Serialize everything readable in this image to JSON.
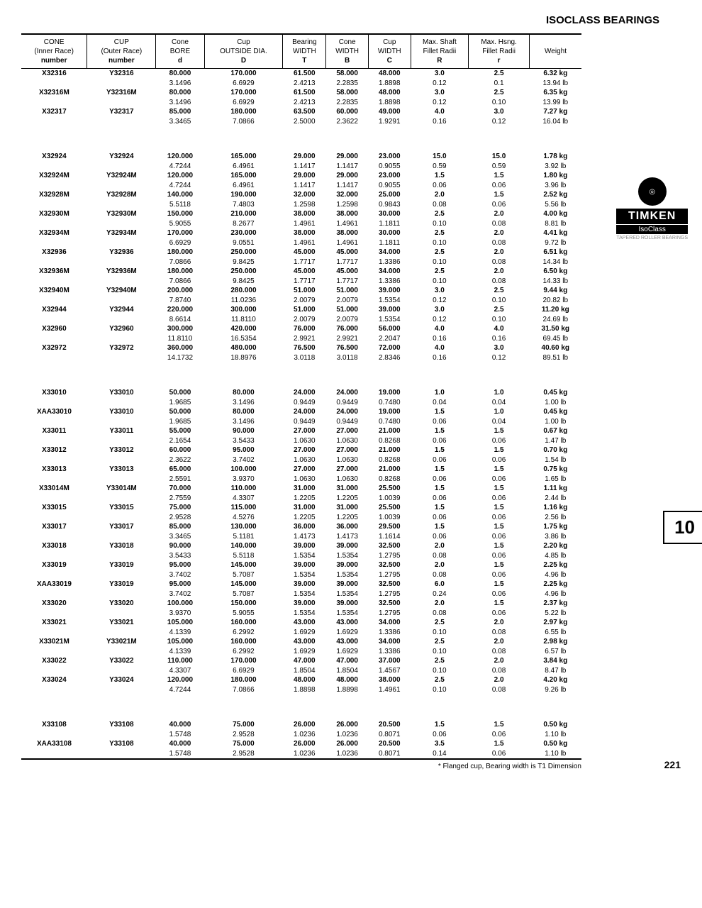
{
  "title": "ISOCLASS BEARINGS",
  "footnote": "* Flanged cup, Bearing width is T1 Dimension",
  "page_number": "221",
  "side_tab": "10",
  "logo": {
    "brand": "TIMKEN",
    "sub": "IsoClass",
    "tag": "TAPERED ROLLER BEARINGS"
  },
  "columns": [
    {
      "l1": "CONE",
      "l2": "(Inner Race)",
      "l3": "number"
    },
    {
      "l1": "CUP",
      "l2": "(Outer Race)",
      "l3": "number"
    },
    {
      "l1": "Cone",
      "l2": "BORE",
      "l3": "d"
    },
    {
      "l1": "Cup",
      "l2": "OUTSIDE DIA.",
      "l3": "D"
    },
    {
      "l1": "Bearing",
      "l2": "WIDTH",
      "l3": "T"
    },
    {
      "l1": "Cone",
      "l2": "WIDTH",
      "l3": "B"
    },
    {
      "l1": "Cup",
      "l2": "WIDTH",
      "l3": "C"
    },
    {
      "l1": "Max. Shaft",
      "l2": "Fillet Radii",
      "l3": "R"
    },
    {
      "l1": "Max. Hsng.",
      "l2": "Fillet Radii",
      "l3": "r"
    },
    {
      "l1": "Weight",
      "l2": "",
      "l3": ""
    }
  ],
  "groups": [
    [
      {
        "cone": "X32316",
        "cup": "Y32316",
        "d": [
          "80.000",
          "3.1496"
        ],
        "D": [
          "170.000",
          "6.6929"
        ],
        "T": [
          "61.500",
          "2.4213"
        ],
        "B": [
          "58.000",
          "2.2835"
        ],
        "C": [
          "48.000",
          "1.8898"
        ],
        "R": [
          "3.0",
          "0.12"
        ],
        "r": [
          "2.5",
          "0.1"
        ],
        "w": [
          "6.32 kg",
          "13.94 lb"
        ]
      },
      {
        "cone": "X32316M",
        "cup": "Y32316M",
        "d": [
          "80.000",
          "3.1496"
        ],
        "D": [
          "170.000",
          "6.6929"
        ],
        "T": [
          "61.500",
          "2.4213"
        ],
        "B": [
          "58.000",
          "2.2835"
        ],
        "C": [
          "48.000",
          "1.8898"
        ],
        "R": [
          "3.0",
          "0.12"
        ],
        "r": [
          "2.5",
          "0.10"
        ],
        "w": [
          "6.35 kg",
          "13.99 lb"
        ]
      },
      {
        "cone": "X32317",
        "cup": "Y32317",
        "d": [
          "85.000",
          "3.3465"
        ],
        "D": [
          "180.000",
          "7.0866"
        ],
        "T": [
          "63.500",
          "2.5000"
        ],
        "B": [
          "60.000",
          "2.3622"
        ],
        "C": [
          "49.000",
          "1.9291"
        ],
        "R": [
          "4.0",
          "0.16"
        ],
        "r": [
          "3.0",
          "0.12"
        ],
        "w": [
          "7.27 kg",
          "16.04 lb"
        ]
      }
    ],
    [
      {
        "cone": "X32924",
        "cup": "Y32924",
        "d": [
          "120.000",
          "4.7244"
        ],
        "D": [
          "165.000",
          "6.4961"
        ],
        "T": [
          "29.000",
          "1.1417"
        ],
        "B": [
          "29.000",
          "1.1417"
        ],
        "C": [
          "23.000",
          "0.9055"
        ],
        "R": [
          "15.0",
          "0.59"
        ],
        "r": [
          "15.0",
          "0.59"
        ],
        "w": [
          "1.78 kg",
          "3.92 lb"
        ]
      },
      {
        "cone": "X32924M",
        "cup": "Y32924M",
        "d": [
          "120.000",
          "4.7244"
        ],
        "D": [
          "165.000",
          "6.4961"
        ],
        "T": [
          "29.000",
          "1.1417"
        ],
        "B": [
          "29.000",
          "1.1417"
        ],
        "C": [
          "23.000",
          "0.9055"
        ],
        "R": [
          "1.5",
          "0.06"
        ],
        "r": [
          "1.5",
          "0.06"
        ],
        "w": [
          "1.80 kg",
          "3.96 lb"
        ]
      },
      {
        "cone": "X32928M",
        "cup": "Y32928M",
        "d": [
          "140.000",
          "5.5118"
        ],
        "D": [
          "190.000",
          "7.4803"
        ],
        "T": [
          "32.000",
          "1.2598"
        ],
        "B": [
          "32.000",
          "1.2598"
        ],
        "C": [
          "25.000",
          "0.9843"
        ],
        "R": [
          "2.0",
          "0.08"
        ],
        "r": [
          "1.5",
          "0.06"
        ],
        "w": [
          "2.52 kg",
          "5.56 lb"
        ]
      },
      {
        "cone": "X32930M",
        "cup": "Y32930M",
        "d": [
          "150.000",
          "5.9055"
        ],
        "D": [
          "210.000",
          "8.2677"
        ],
        "T": [
          "38.000",
          "1.4961"
        ],
        "B": [
          "38.000",
          "1.4961"
        ],
        "C": [
          "30.000",
          "1.1811"
        ],
        "R": [
          "2.5",
          "0.10"
        ],
        "r": [
          "2.0",
          "0.08"
        ],
        "w": [
          "4.00 kg",
          "8.81 lb"
        ]
      },
      {
        "cone": "X32934M",
        "cup": "Y32934M",
        "d": [
          "170.000",
          "6.6929"
        ],
        "D": [
          "230.000",
          "9.0551"
        ],
        "T": [
          "38.000",
          "1.4961"
        ],
        "B": [
          "38.000",
          "1.4961"
        ],
        "C": [
          "30.000",
          "1.1811"
        ],
        "R": [
          "2.5",
          "0.10"
        ],
        "r": [
          "2.0",
          "0.08"
        ],
        "w": [
          "4.41 kg",
          "9.72 lb"
        ]
      },
      {
        "cone": "X32936",
        "cup": "Y32936",
        "d": [
          "180.000",
          "7.0866"
        ],
        "D": [
          "250.000",
          "9.8425"
        ],
        "T": [
          "45.000",
          "1.7717"
        ],
        "B": [
          "45.000",
          "1.7717"
        ],
        "C": [
          "34.000",
          "1.3386"
        ],
        "R": [
          "2.5",
          "0.10"
        ],
        "r": [
          "2.0",
          "0.08"
        ],
        "w": [
          "6.51 kg",
          "14.34 lb"
        ]
      },
      {
        "cone": "X32936M",
        "cup": "Y32936M",
        "d": [
          "180.000",
          "7.0866"
        ],
        "D": [
          "250.000",
          "9.8425"
        ],
        "T": [
          "45.000",
          "1.7717"
        ],
        "B": [
          "45.000",
          "1.7717"
        ],
        "C": [
          "34.000",
          "1.3386"
        ],
        "R": [
          "2.5",
          "0.10"
        ],
        "r": [
          "2.0",
          "0.08"
        ],
        "w": [
          "6.50 kg",
          "14.33 lb"
        ]
      },
      {
        "cone": "X32940M",
        "cup": "Y32940M",
        "d": [
          "200.000",
          "7.8740"
        ],
        "D": [
          "280.000",
          "11.0236"
        ],
        "T": [
          "51.000",
          "2.0079"
        ],
        "B": [
          "51.000",
          "2.0079"
        ],
        "C": [
          "39.000",
          "1.5354"
        ],
        "R": [
          "3.0",
          "0.12"
        ],
        "r": [
          "2.5",
          "0.10"
        ],
        "w": [
          "9.44 kg",
          "20.82 lb"
        ]
      },
      {
        "cone": "X32944",
        "cup": "Y32944",
        "d": [
          "220.000",
          "8.6614"
        ],
        "D": [
          "300.000",
          "11.8110"
        ],
        "T": [
          "51.000",
          "2.0079"
        ],
        "B": [
          "51.000",
          "2.0079"
        ],
        "C": [
          "39.000",
          "1.5354"
        ],
        "R": [
          "3.0",
          "0.12"
        ],
        "r": [
          "2.5",
          "0.10"
        ],
        "w": [
          "11.20 kg",
          "24.69 lb"
        ]
      },
      {
        "cone": "X32960",
        "cup": "Y32960",
        "d": [
          "300.000",
          "11.8110"
        ],
        "D": [
          "420.000",
          "16.5354"
        ],
        "T": [
          "76.000",
          "2.9921"
        ],
        "B": [
          "76.000",
          "2.9921"
        ],
        "C": [
          "56.000",
          "2.2047"
        ],
        "R": [
          "4.0",
          "0.16"
        ],
        "r": [
          "4.0",
          "0.16"
        ],
        "w": [
          "31.50 kg",
          "69.45 lb"
        ]
      },
      {
        "cone": "X32972",
        "cup": "Y32972",
        "d": [
          "360.000",
          "14.1732"
        ],
        "D": [
          "480.000",
          "18.8976"
        ],
        "T": [
          "76.500",
          "3.0118"
        ],
        "B": [
          "76.500",
          "3.0118"
        ],
        "C": [
          "72.000",
          "2.8346"
        ],
        "R": [
          "4.0",
          "0.16"
        ],
        "r": [
          "3.0",
          "0.12"
        ],
        "w": [
          "40.60 kg",
          "89.51 lb"
        ]
      }
    ],
    [
      {
        "cone": "X33010",
        "cup": "Y33010",
        "d": [
          "50.000",
          "1.9685"
        ],
        "D": [
          "80.000",
          "3.1496"
        ],
        "T": [
          "24.000",
          "0.9449"
        ],
        "B": [
          "24.000",
          "0.9449"
        ],
        "C": [
          "19.000",
          "0.7480"
        ],
        "R": [
          "1.0",
          "0.04"
        ],
        "r": [
          "1.0",
          "0.04"
        ],
        "w": [
          "0.45 kg",
          "1.00 lb"
        ]
      },
      {
        "cone": "XAA33010",
        "cup": "Y33010",
        "d": [
          "50.000",
          "1.9685"
        ],
        "D": [
          "80.000",
          "3.1496"
        ],
        "T": [
          "24.000",
          "0.9449"
        ],
        "B": [
          "24.000",
          "0.9449"
        ],
        "C": [
          "19.000",
          "0.7480"
        ],
        "R": [
          "1.5",
          "0.06"
        ],
        "r": [
          "1.0",
          "0.04"
        ],
        "w": [
          "0.45 kg",
          "1.00 lb"
        ]
      },
      {
        "cone": "X33011",
        "cup": "Y33011",
        "d": [
          "55.000",
          "2.1654"
        ],
        "D": [
          "90.000",
          "3.5433"
        ],
        "T": [
          "27.000",
          "1.0630"
        ],
        "B": [
          "27.000",
          "1.0630"
        ],
        "C": [
          "21.000",
          "0.8268"
        ],
        "R": [
          "1.5",
          "0.06"
        ],
        "r": [
          "1.5",
          "0.06"
        ],
        "w": [
          "0.67 kg",
          "1.47 lb"
        ]
      },
      {
        "cone": "X33012",
        "cup": "Y33012",
        "d": [
          "60.000",
          "2.3622"
        ],
        "D": [
          "95.000",
          "3.7402"
        ],
        "T": [
          "27.000",
          "1.0630"
        ],
        "B": [
          "27.000",
          "1.0630"
        ],
        "C": [
          "21.000",
          "0.8268"
        ],
        "R": [
          "1.5",
          "0.06"
        ],
        "r": [
          "1.5",
          "0.06"
        ],
        "w": [
          "0.70 kg",
          "1.54 lb"
        ]
      },
      {
        "cone": "X33013",
        "cup": "Y33013",
        "d": [
          "65.000",
          "2.5591"
        ],
        "D": [
          "100.000",
          "3.9370"
        ],
        "T": [
          "27.000",
          "1.0630"
        ],
        "B": [
          "27.000",
          "1.0630"
        ],
        "C": [
          "21.000",
          "0.8268"
        ],
        "R": [
          "1.5",
          "0.06"
        ],
        "r": [
          "1.5",
          "0.06"
        ],
        "w": [
          "0.75 kg",
          "1.65 lb"
        ]
      },
      {
        "cone": "X33014M",
        "cup": "Y33014M",
        "d": [
          "70.000",
          "2.7559"
        ],
        "D": [
          "110.000",
          "4.3307"
        ],
        "T": [
          "31.000",
          "1.2205"
        ],
        "B": [
          "31.000",
          "1.2205"
        ],
        "C": [
          "25.500",
          "1.0039"
        ],
        "R": [
          "1.5",
          "0.06"
        ],
        "r": [
          "1.5",
          "0.06"
        ],
        "w": [
          "1.11 kg",
          "2.44 lb"
        ]
      },
      {
        "cone": "X33015",
        "cup": "Y33015",
        "d": [
          "75.000",
          "2.9528"
        ],
        "D": [
          "115.000",
          "4.5276"
        ],
        "T": [
          "31.000",
          "1.2205"
        ],
        "B": [
          "31.000",
          "1.2205"
        ],
        "C": [
          "25.500",
          "1.0039"
        ],
        "R": [
          "1.5",
          "0.06"
        ],
        "r": [
          "1.5",
          "0.06"
        ],
        "w": [
          "1.16 kg",
          "2.56 lb"
        ]
      },
      {
        "cone": "X33017",
        "cup": "Y33017",
        "d": [
          "85.000",
          "3.3465"
        ],
        "D": [
          "130.000",
          "5.1181"
        ],
        "T": [
          "36.000",
          "1.4173"
        ],
        "B": [
          "36.000",
          "1.4173"
        ],
        "C": [
          "29.500",
          "1.1614"
        ],
        "R": [
          "1.5",
          "0.06"
        ],
        "r": [
          "1.5",
          "0.06"
        ],
        "w": [
          "1.75 kg",
          "3.86 lb"
        ]
      },
      {
        "cone": "X33018",
        "cup": "Y33018",
        "d": [
          "90.000",
          "3.5433"
        ],
        "D": [
          "140.000",
          "5.5118"
        ],
        "T": [
          "39.000",
          "1.5354"
        ],
        "B": [
          "39.000",
          "1.5354"
        ],
        "C": [
          "32.500",
          "1.2795"
        ],
        "R": [
          "2.0",
          "0.08"
        ],
        "r": [
          "1.5",
          "0.06"
        ],
        "w": [
          "2.20 kg",
          "4.85 lb"
        ]
      },
      {
        "cone": "X33019",
        "cup": "Y33019",
        "d": [
          "95.000",
          "3.7402"
        ],
        "D": [
          "145.000",
          "5.7087"
        ],
        "T": [
          "39.000",
          "1.5354"
        ],
        "B": [
          "39.000",
          "1.5354"
        ],
        "C": [
          "32.500",
          "1.2795"
        ],
        "R": [
          "2.0",
          "0.08"
        ],
        "r": [
          "1.5",
          "0.06"
        ],
        "w": [
          "2.25 kg",
          "4.96 lb"
        ]
      },
      {
        "cone": "XAA33019",
        "cup": "Y33019",
        "d": [
          "95.000",
          "3.7402"
        ],
        "D": [
          "145.000",
          "5.7087"
        ],
        "T": [
          "39.000",
          "1.5354"
        ],
        "B": [
          "39.000",
          "1.5354"
        ],
        "C": [
          "32.500",
          "1.2795"
        ],
        "R": [
          "6.0",
          "0.24"
        ],
        "r": [
          "1.5",
          "0.06"
        ],
        "w": [
          "2.25 kg",
          "4.96 lb"
        ]
      },
      {
        "cone": "X33020",
        "cup": "Y33020",
        "d": [
          "100.000",
          "3.9370"
        ],
        "D": [
          "150.000",
          "5.9055"
        ],
        "T": [
          "39.000",
          "1.5354"
        ],
        "B": [
          "39.000",
          "1.5354"
        ],
        "C": [
          "32.500",
          "1.2795"
        ],
        "R": [
          "2.0",
          "0.08"
        ],
        "r": [
          "1.5",
          "0.06"
        ],
        "w": [
          "2.37 kg",
          "5.22 lb"
        ]
      },
      {
        "cone": "X33021",
        "cup": "Y33021",
        "d": [
          "105.000",
          "4.1339"
        ],
        "D": [
          "160.000",
          "6.2992"
        ],
        "T": [
          "43.000",
          "1.6929"
        ],
        "B": [
          "43.000",
          "1.6929"
        ],
        "C": [
          "34.000",
          "1.3386"
        ],
        "R": [
          "2.5",
          "0.10"
        ],
        "r": [
          "2.0",
          "0.08"
        ],
        "w": [
          "2.97 kg",
          "6.55 lb"
        ]
      },
      {
        "cone": "X33021M",
        "cup": "Y33021M",
        "d": [
          "105.000",
          "4.1339"
        ],
        "D": [
          "160.000",
          "6.2992"
        ],
        "T": [
          "43.000",
          "1.6929"
        ],
        "B": [
          "43.000",
          "1.6929"
        ],
        "C": [
          "34.000",
          "1.3386"
        ],
        "R": [
          "2.5",
          "0.10"
        ],
        "r": [
          "2.0",
          "0.08"
        ],
        "w": [
          "2.98 kg",
          "6.57 lb"
        ]
      },
      {
        "cone": "X33022",
        "cup": "Y33022",
        "d": [
          "110.000",
          "4.3307"
        ],
        "D": [
          "170.000",
          "6.6929"
        ],
        "T": [
          "47.000",
          "1.8504"
        ],
        "B": [
          "47.000",
          "1.8504"
        ],
        "C": [
          "37.000",
          "1.4567"
        ],
        "R": [
          "2.5",
          "0.10"
        ],
        "r": [
          "2.0",
          "0.08"
        ],
        "w": [
          "3.84 kg",
          "8.47 lb"
        ]
      },
      {
        "cone": "X33024",
        "cup": "Y33024",
        "d": [
          "120.000",
          "4.7244"
        ],
        "D": [
          "180.000",
          "7.0866"
        ],
        "T": [
          "48.000",
          "1.8898"
        ],
        "B": [
          "48.000",
          "1.8898"
        ],
        "C": [
          "38.000",
          "1.4961"
        ],
        "R": [
          "2.5",
          "0.10"
        ],
        "r": [
          "2.0",
          "0.08"
        ],
        "w": [
          "4.20 kg",
          "9.26 lb"
        ]
      }
    ],
    [
      {
        "cone": "X33108",
        "cup": "Y33108",
        "d": [
          "40.000",
          "1.5748"
        ],
        "D": [
          "75.000",
          "2.9528"
        ],
        "T": [
          "26.000",
          "1.0236"
        ],
        "B": [
          "26.000",
          "1.0236"
        ],
        "C": [
          "20.500",
          "0.8071"
        ],
        "R": [
          "1.5",
          "0.06"
        ],
        "r": [
          "1.5",
          "0.06"
        ],
        "w": [
          "0.50 kg",
          "1.10 lb"
        ]
      },
      {
        "cone": "XAA33108",
        "cup": "Y33108",
        "d": [
          "40.000",
          "1.5748"
        ],
        "D": [
          "75.000",
          "2.9528"
        ],
        "T": [
          "26.000",
          "1.0236"
        ],
        "B": [
          "26.000",
          "1.0236"
        ],
        "C": [
          "20.500",
          "0.8071"
        ],
        "R": [
          "3.5",
          "0.14"
        ],
        "r": [
          "1.5",
          "0.06"
        ],
        "w": [
          "0.50 kg",
          "1.10 lb"
        ]
      }
    ]
  ]
}
